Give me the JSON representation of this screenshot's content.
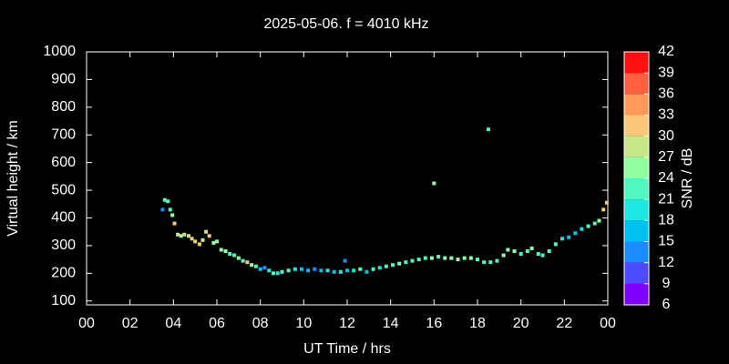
{
  "chart_data": {
    "type": "scatter",
    "title": "2025-05-06. f = 4010 kHz",
    "x_label": "UT Time / hrs",
    "y_label": "Virtual height / km",
    "xlim": [
      0,
      24
    ],
    "ylim": [
      86,
      1000
    ],
    "xticks": [
      {
        "value": 0,
        "label": "00"
      },
      {
        "value": 2,
        "label": "02"
      },
      {
        "value": 4,
        "label": "04"
      },
      {
        "value": 6,
        "label": "06"
      },
      {
        "value": 8,
        "label": "08"
      },
      10,
      12,
      14,
      16,
      18,
      20,
      22,
      {
        "value": 24,
        "label": "00"
      }
    ],
    "yticks": [
      100,
      200,
      300,
      400,
      500,
      600,
      700,
      800,
      900,
      1000
    ],
    "x": [
      3.5,
      3.6,
      3.75,
      3.85,
      3.95,
      4.05,
      4.2,
      4.35,
      4.5,
      4.7,
      4.85,
      5.0,
      5.2,
      5.35,
      5.5,
      5.65,
      5.85,
      6.0,
      6.2,
      6.4,
      6.6,
      6.8,
      7.0,
      7.2,
      7.4,
      7.6,
      7.8,
      8.0,
      8.2,
      8.4,
      8.6,
      8.8,
      9.0,
      9.3,
      9.6,
      9.9,
      10.2,
      10.5,
      10.8,
      11.1,
      11.4,
      11.7,
      11.9,
      12.0,
      12.3,
      12.6,
      12.9,
      13.2,
      13.5,
      13.8,
      14.1,
      14.4,
      14.7,
      15.0,
      15.3,
      15.6,
      15.9,
      16.0,
      16.2,
      16.5,
      16.8,
      17.1,
      17.4,
      17.7,
      18.0,
      18.3,
      18.5,
      18.6,
      18.9,
      19.2,
      19.4,
      19.7,
      20.0,
      20.3,
      20.5,
      20.8,
      21.0,
      21.3,
      21.6,
      21.9,
      22.2,
      22.5,
      22.8,
      23.1,
      23.4,
      23.6,
      23.8,
      23.95
    ],
    "values": [
      430,
      465,
      460,
      430,
      410,
      380,
      340,
      335,
      340,
      335,
      325,
      315,
      305,
      320,
      350,
      335,
      310,
      315,
      285,
      280,
      270,
      265,
      255,
      245,
      240,
      230,
      225,
      215,
      220,
      210,
      200,
      200,
      205,
      210,
      215,
      215,
      210,
      215,
      210,
      210,
      205,
      205,
      245,
      210,
      210,
      215,
      205,
      215,
      220,
      225,
      230,
      235,
      240,
      245,
      250,
      255,
      255,
      525,
      260,
      255,
      255,
      250,
      255,
      255,
      250,
      240,
      720,
      240,
      245,
      265,
      285,
      280,
      270,
      280,
      290,
      270,
      265,
      280,
      305,
      325,
      330,
      345,
      360,
      370,
      380,
      390,
      430,
      455
    ],
    "snr": [
      12,
      21,
      21,
      21,
      24,
      30,
      27,
      24,
      27,
      27,
      30,
      30,
      30,
      27,
      27,
      30,
      24,
      24,
      24,
      24,
      21,
      21,
      24,
      21,
      30,
      24,
      21,
      15,
      12,
      18,
      21,
      18,
      21,
      21,
      18,
      15,
      15,
      12,
      15,
      18,
      15,
      18,
      12,
      15,
      18,
      21,
      15,
      21,
      18,
      21,
      21,
      24,
      21,
      21,
      21,
      21,
      24,
      24,
      21,
      24,
      24,
      24,
      24,
      24,
      21,
      21,
      21,
      21,
      21,
      24,
      24,
      24,
      21,
      21,
      24,
      21,
      21,
      21,
      21,
      18,
      15,
      15,
      18,
      21,
      21,
      24,
      30,
      30
    ],
    "colorbar": {
      "label": "SNR / dB",
      "ticks": [
        6,
        9,
        12,
        15,
        18,
        21,
        24,
        27,
        30,
        33,
        36,
        39,
        42
      ],
      "colors": [
        "#8000ff",
        "#4c4cff",
        "#1a8cff",
        "#00c0f0",
        "#1ee6e0",
        "#50f8c0",
        "#90ffa0",
        "#c8e888",
        "#f8c878",
        "#ff9858",
        "#ff6040",
        "#ff1010"
      ]
    }
  }
}
